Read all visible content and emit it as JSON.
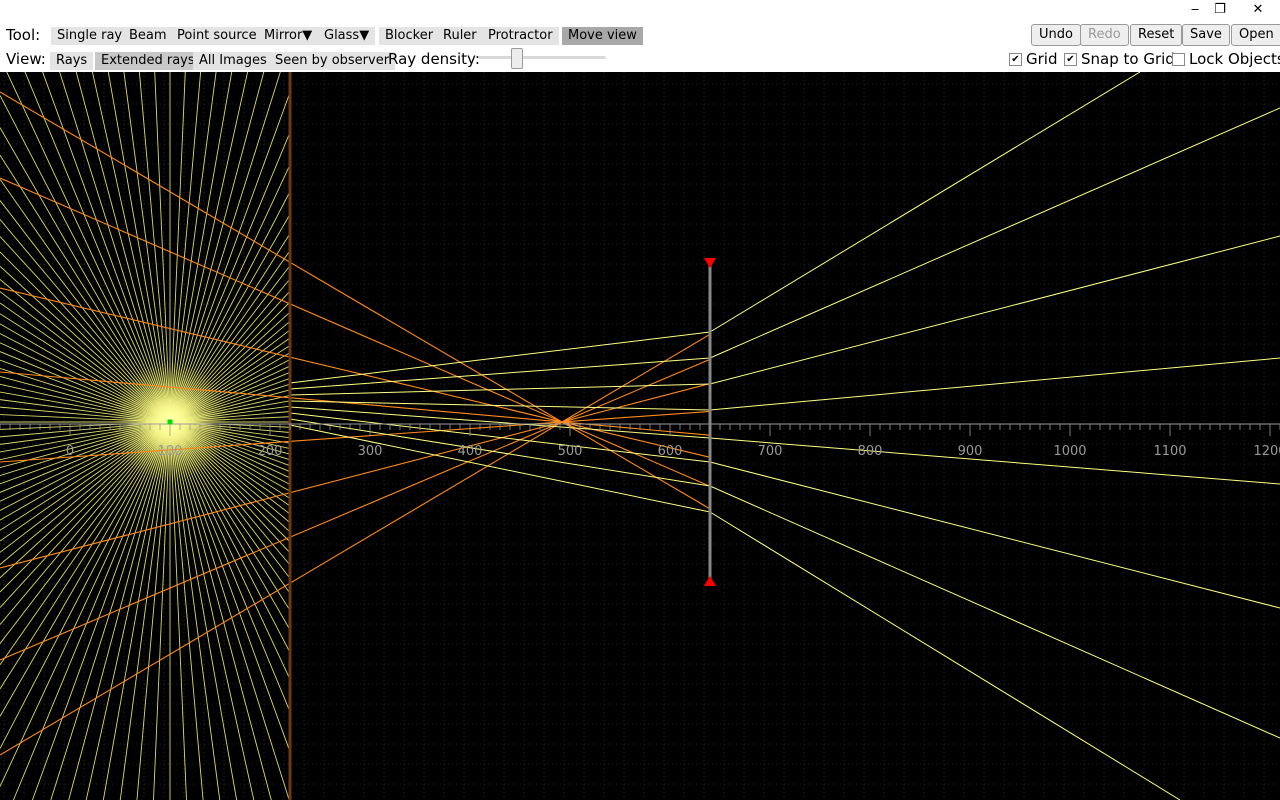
{
  "window": {
    "minimize_glyph": "‒",
    "maximize_glyph": "❐",
    "close_glyph": "✕"
  },
  "toolbar": {
    "tool_label": "Tool:",
    "tools": [
      "Single ray",
      "Beam",
      "Point source",
      "Mirror▼",
      "Glass▼",
      "Blocker",
      "Ruler",
      "Protractor"
    ],
    "move_view": "Move view",
    "undo": "Undo",
    "redo": "Redo",
    "reset": "Reset",
    "save": "Save",
    "open": "Open"
  },
  "viewbar": {
    "view_label": "View:",
    "modes": [
      "Rays",
      "Extended rays",
      "All Images",
      "Seen by observer"
    ],
    "selected_mode": "Extended rays",
    "ray_density_label": "Ray density:",
    "grid": "Grid",
    "grid_checked": true,
    "snap": "Snap to Grid",
    "snap_checked": true,
    "lock": "Lock Objects",
    "lock_checked": false
  },
  "scene": {
    "ruler_labels": [
      "0",
      "100",
      "200",
      "300",
      "400",
      "500",
      "600",
      "700",
      "800",
      "900",
      "1000",
      "1100",
      "1200"
    ],
    "colors": {
      "ray": "#ffff80",
      "extended_ray": "#ff8a1a",
      "blocker": "#6b3a14",
      "lens": "#888888",
      "lens_arrow": "#ff0000",
      "source": "#00dd00",
      "grid": "#444444"
    }
  }
}
